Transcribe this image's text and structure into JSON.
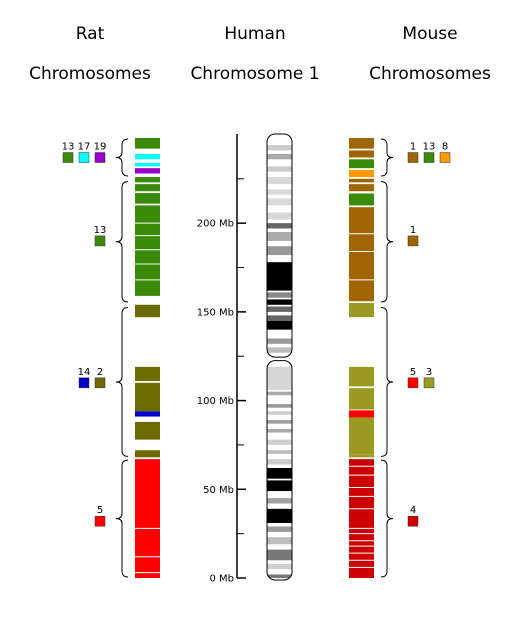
{
  "headers": {
    "rat": [
      "Rat",
      "Chromosomes"
    ],
    "human": [
      "Human",
      "Chromosome 1"
    ],
    "mouse": [
      "Mouse",
      "Chromosomes"
    ]
  },
  "colors": {
    "rat1": "#3a8a08",
    "rat13": "#3a8a08",
    "rat17": "#00ffff",
    "rat19": "#9900cc",
    "rat14": "#0000cc",
    "rat2": "#6b6b00",
    "rat5": "#ff0000",
    "mouse1": "#a06400",
    "mouse13": "#3a8a08",
    "mouse8": "#ff9900",
    "mouse5": "#ff0000",
    "mouse3": "#9a9a22",
    "mouse4": "#cc0000"
  },
  "axis": {
    "unit_max": 248,
    "labels": [
      {
        "mb": 0,
        "text": "0 Mb"
      },
      {
        "mb": 50,
        "text": "50 Mb"
      },
      {
        "mb": 100,
        "text": "100 Mb"
      },
      {
        "mb": 150,
        "text": "150 Mb"
      },
      {
        "mb": 200,
        "text": "200 Mb"
      }
    ],
    "minor_ticks": [
      25,
      75,
      125,
      175,
      225
    ]
  },
  "human_bands": [
    [
      0,
      2,
      "#777777"
    ],
    [
      5,
      3,
      "#d0d0d0"
    ],
    [
      10,
      6,
      "#777777"
    ],
    [
      19,
      4,
      "#bdbdbd"
    ],
    [
      26,
      3,
      "#9a9a9a"
    ],
    [
      31,
      8,
      "#000000"
    ],
    [
      42,
      3,
      "#a0a0a0"
    ],
    [
      49,
      6,
      "#000000"
    ],
    [
      56,
      6,
      "#000000"
    ],
    [
      64,
      3,
      "#cccccc"
    ],
    [
      70,
      2,
      "#bdbdbd"
    ],
    [
      75,
      3,
      "#d0d0d0"
    ],
    [
      82,
      2,
      "#aaaaaa"
    ],
    [
      87,
      2,
      "#a0a0a0"
    ],
    [
      92,
      2,
      "#cccccc"
    ],
    [
      96,
      2,
      "#999999"
    ],
    [
      103,
      2,
      "#aaaaaa"
    ],
    [
      106,
      13,
      "#d6d6d6"
    ],
    [
      127,
      3,
      "#bbbbbb"
    ],
    [
      132,
      3,
      "#9a9a9a"
    ],
    [
      140,
      5,
      "#000000"
    ],
    [
      145,
      3,
      "#666666"
    ],
    [
      150,
      3,
      "#666666"
    ],
    [
      154,
      3,
      "#000000"
    ],
    [
      158,
      3,
      "#888888"
    ],
    [
      162,
      16,
      "#000000"
    ],
    [
      182,
      5,
      "#999999"
    ],
    [
      190,
      5,
      "#aaaaaa"
    ],
    [
      197,
      3,
      "#666666"
    ],
    [
      202,
      4,
      "#d8d8d8"
    ],
    [
      210,
      4,
      "#d8d8d8"
    ],
    [
      216,
      3,
      "#d8d8d8"
    ],
    [
      222,
      4,
      "#d8d8d8"
    ],
    [
      229,
      3,
      "#cccccc"
    ],
    [
      236,
      3,
      "#aaaaaa"
    ],
    [
      241,
      3,
      "#cccccc"
    ]
  ],
  "human_centromere_mb": 123.5,
  "rat_blocks": [
    [
      0,
      67,
      "rat5"
    ],
    [
      68,
      4,
      "rat2"
    ],
    [
      78,
      10,
      "rat2"
    ],
    [
      91,
      3,
      "rat14"
    ],
    [
      94,
      16,
      "rat2"
    ],
    [
      111,
      8,
      "rat2"
    ],
    [
      147,
      7,
      "rat2"
    ],
    [
      159,
      51,
      "rat13"
    ],
    [
      211,
      3,
      "rat13"
    ],
    [
      213,
      4,
      "rat13"
    ],
    [
      218,
      4,
      "rat13"
    ],
    [
      223,
      3,
      "rat13"
    ],
    [
      228,
      3,
      "rat19"
    ],
    [
      232,
      2,
      "rat17"
    ],
    [
      236,
      3,
      "rat17"
    ],
    [
      242,
      6,
      "rat1"
    ]
  ],
  "rat_breaks": [
    3,
    12,
    28,
    200,
    193,
    185,
    177,
    168
  ],
  "mouse_blocks": [
    [
      0,
      67,
      "mouse4"
    ],
    [
      68,
      1.5,
      "mouse3"
    ],
    [
      69.5,
      21,
      "mouse3"
    ],
    [
      90.5,
      4,
      "mouse5"
    ],
    [
      95,
      12,
      "mouse3"
    ],
    [
      108,
      11,
      "mouse3"
    ],
    [
      147,
      8,
      "mouse3"
    ],
    [
      156,
      53,
      "mouse1"
    ],
    [
      210,
      7,
      "mouse13"
    ],
    [
      218,
      4,
      "mouse1"
    ],
    [
      223,
      2,
      "mouse1"
    ],
    [
      226,
      4,
      "mouse8"
    ],
    [
      231,
      5,
      "mouse13"
    ],
    [
      237,
      4,
      "mouse1"
    ],
    [
      242,
      6,
      "mouse1"
    ]
  ],
  "mouse_breaks": [
    6,
    10,
    14,
    18,
    21,
    25,
    28,
    39,
    46,
    51,
    58,
    63,
    168,
    184,
    194,
    217
  ],
  "braces": [
    {
      "from": 0,
      "to": 67
    },
    {
      "from": 68,
      "to": 153
    },
    {
      "from": 155,
      "to": 224
    },
    {
      "from": 226,
      "to": 248
    }
  ],
  "keys": {
    "rat": [
      {
        "y_mb": 32,
        "items": [
          {
            "label": "5",
            "color": "rat5"
          }
        ]
      },
      {
        "y_mb": 110,
        "items": [
          {
            "label": "14",
            "color": "rat14"
          },
          {
            "label": "2",
            "color": "rat2"
          }
        ]
      },
      {
        "y_mb": 190,
        "items": [
          {
            "label": "13",
            "color": "rat13"
          }
        ]
      },
      {
        "y_mb": 237,
        "items": [
          {
            "label": "13",
            "color": "rat13"
          },
          {
            "label": "17",
            "color": "rat17"
          },
          {
            "label": "19",
            "color": "rat19"
          }
        ]
      }
    ],
    "mouse": [
      {
        "y_mb": 32,
        "items": [
          {
            "label": "4",
            "color": "mouse4"
          }
        ]
      },
      {
        "y_mb": 110,
        "items": [
          {
            "label": "5",
            "color": "mouse5"
          },
          {
            "label": "3",
            "color": "mouse3"
          }
        ]
      },
      {
        "y_mb": 190,
        "items": [
          {
            "label": "1",
            "color": "mouse1"
          }
        ]
      },
      {
        "y_mb": 237,
        "items": [
          {
            "label": "1",
            "color": "mouse1"
          },
          {
            "label": "13",
            "color": "mouse13"
          },
          {
            "label": "8",
            "color": "mouse8"
          }
        ]
      }
    ]
  }
}
